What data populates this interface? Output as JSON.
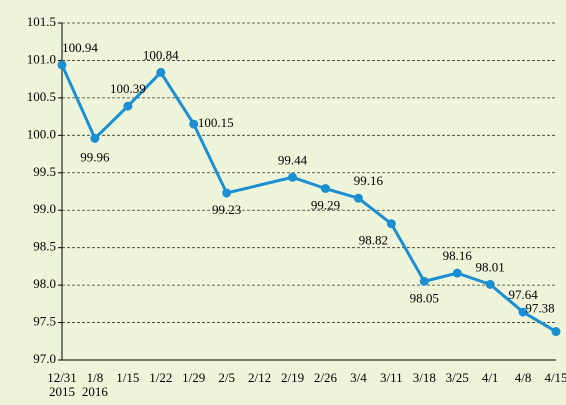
{
  "chart_data": {
    "type": "line",
    "categories": [
      "12/31\n2015",
      "1/8\n2016",
      "1/15",
      "1/22",
      "1/29",
      "2/5",
      "2/12",
      "2/19",
      "2/26",
      "3/4",
      "3/11",
      "3/18",
      "3/25",
      "4/1",
      "4/8",
      "4/15"
    ],
    "series": [
      {
        "color": "#1b8fd2",
        "values": [
          100.94,
          99.96,
          100.39,
          100.84,
          100.15,
          99.23,
          null,
          99.44,
          99.29,
          99.16,
          98.82,
          98.05,
          98.16,
          98.01,
          97.64,
          97.38
        ]
      }
    ],
    "ylim": [
      97,
      101.5
    ],
    "yticks": [
      {
        "value": 97,
        "label": "97.0"
      },
      {
        "value": 97.5,
        "label": "97.5"
      },
      {
        "value": 98,
        "label": "98.0"
      },
      {
        "value": 98.5,
        "label": "98.5"
      },
      {
        "value": 99,
        "label": "99.0"
      },
      {
        "value": 99.5,
        "label": "99.5"
      },
      {
        "value": 100,
        "label": "100.0"
      },
      {
        "value": 100.5,
        "label": "100.5"
      },
      {
        "value": 101,
        "label": "101.0"
      },
      {
        "value": 101.5,
        "label": "101.5"
      }
    ],
    "grid": true
  }
}
